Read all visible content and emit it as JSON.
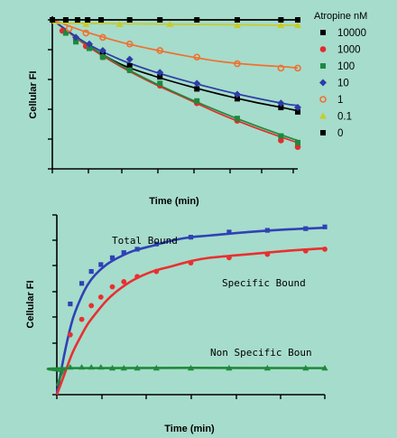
{
  "colors": {
    "background": "#a6dccb",
    "c10000": "#000000",
    "c1000": "#e52a2a",
    "c100": "#1c8a3e",
    "c10": "#2b3da8",
    "c1": "#f07030",
    "c01": "#c8cc2a",
    "c0": "#000000",
    "total": "#2f42b5",
    "specific": "#e83030",
    "nonspecific": "#1f8a3a"
  },
  "chart_data": [
    {
      "type": "scatter",
      "title": "",
      "xlabel": "Time (min)",
      "ylabel": "Cellular FI",
      "legend_title": "Atropine nM",
      "legend_position": "right",
      "x_ticks": 8,
      "y_ticks": 6,
      "series": [
        {
          "name": "10000",
          "color_key": "c10000",
          "marker": "square",
          "x": [
            0,
            0.7,
            1.1,
            1.5,
            2.3,
            3.2,
            4.3,
            5.5,
            6.8,
            7.3
          ],
          "y": [
            1.0,
            0.91,
            0.88,
            0.845,
            0.79,
            0.74,
            0.685,
            0.64,
            0.6,
            0.58
          ]
        },
        {
          "name": "1000",
          "color_key": "c1000",
          "marker": "circle",
          "x": [
            0.3,
            0.7,
            1.0,
            1.5,
            2.3,
            3.2,
            4.3,
            5.5,
            6.8,
            7.3
          ],
          "y": [
            0.95,
            0.91,
            0.88,
            0.83,
            0.77,
            0.7,
            0.62,
            0.54,
            0.45,
            0.42
          ]
        },
        {
          "name": "100",
          "color_key": "c100",
          "marker": "square",
          "x": [
            0.4,
            0.7,
            1.1,
            1.5,
            2.3,
            3.2,
            4.3,
            5.5,
            6.8,
            7.3
          ],
          "y": [
            0.94,
            0.9,
            0.87,
            0.83,
            0.77,
            0.71,
            0.63,
            0.55,
            0.47,
            0.44
          ]
        },
        {
          "name": "10",
          "color_key": "c10",
          "marker": "diamond",
          "x": [
            0.7,
            1.1,
            1.5,
            2.3,
            3.2,
            4.3,
            5.5,
            6.8,
            7.3
          ],
          "y": [
            0.92,
            0.89,
            0.86,
            0.82,
            0.76,
            0.71,
            0.66,
            0.62,
            0.6
          ]
        },
        {
          "name": "1",
          "color_key": "c1",
          "marker": "circle-open",
          "x": [
            0.5,
            1.0,
            1.5,
            2.3,
            3.2,
            4.3,
            5.5,
            6.8,
            7.3
          ],
          "y": [
            0.96,
            0.94,
            0.92,
            0.89,
            0.86,
            0.83,
            0.8,
            0.78,
            0.78
          ]
        },
        {
          "name": "0.1",
          "color_key": "c01",
          "marker": "triangle",
          "x": [
            1.0,
            2.0,
            3.5,
            5.5,
            6.8,
            7.3
          ],
          "y": [
            0.98,
            0.98,
            0.98,
            0.975,
            0.975,
            0.975
          ]
        },
        {
          "name": "0",
          "color_key": "c0",
          "marker": "square",
          "x": [
            0,
            0.4,
            0.75,
            1.05,
            1.45,
            2.3,
            3.2,
            4.3,
            5.5,
            6.8,
            7.3
          ],
          "y": [
            1.0,
            1.0,
            1.0,
            1.0,
            1.0,
            1.0,
            1.0,
            1.0,
            1.0,
            1.0,
            1.0
          ]
        }
      ],
      "fits": [
        {
          "color_key": "c10000",
          "x": [
            0,
            1,
            2,
            3,
            4,
            5,
            6,
            7,
            7.3
          ],
          "y": [
            1.0,
            0.89,
            0.8,
            0.745,
            0.7,
            0.66,
            0.625,
            0.595,
            0.585
          ]
        },
        {
          "color_key": "c1000",
          "x": [
            0,
            1,
            2,
            3,
            4,
            5,
            6,
            7,
            7.3
          ],
          "y": [
            1.0,
            0.885,
            0.79,
            0.71,
            0.64,
            0.57,
            0.51,
            0.455,
            0.44
          ]
        },
        {
          "color_key": "c100",
          "x": [
            0,
            1,
            2,
            3,
            4,
            5,
            6,
            7,
            7.3
          ],
          "y": [
            1.0,
            0.89,
            0.795,
            0.715,
            0.645,
            0.58,
            0.52,
            0.465,
            0.45
          ]
        },
        {
          "color_key": "c10",
          "x": [
            0,
            1,
            2,
            3,
            4,
            5,
            6,
            7,
            7.3
          ],
          "y": [
            1.0,
            0.895,
            0.82,
            0.765,
            0.72,
            0.68,
            0.645,
            0.615,
            0.61
          ]
        },
        {
          "color_key": "c1",
          "x": [
            0,
            1,
            2,
            3,
            4,
            5,
            6,
            7,
            7.3
          ],
          "y": [
            1.0,
            0.945,
            0.9,
            0.865,
            0.835,
            0.81,
            0.795,
            0.785,
            0.78
          ]
        },
        {
          "color_key": "c01",
          "x": [
            0,
            7.3
          ],
          "y": [
            0.985,
            0.975
          ]
        },
        {
          "color_key": "c0",
          "x": [
            0,
            7.3
          ],
          "y": [
            1.0,
            1.0
          ]
        }
      ]
    },
    {
      "type": "scatter",
      "title": "",
      "xlabel": "Time (min)",
      "ylabel": "Cellular FI",
      "x_ticks": 7,
      "y_ticks": 6,
      "series": [
        {
          "name": "Total Bound",
          "color_key": "total",
          "marker": "square",
          "x": [
            0.35,
            0.65,
            0.9,
            1.15,
            1.45,
            1.75,
            2.1,
            2.6,
            3.5,
            4.5,
            5.5,
            6.5,
            7.0
          ],
          "y": [
            0.53,
            0.65,
            0.72,
            0.76,
            0.8,
            0.83,
            0.85,
            0.88,
            0.92,
            0.95,
            0.96,
            0.97,
            0.98
          ]
        },
        {
          "name": "Specific Bound",
          "color_key": "specific",
          "marker": "circle",
          "x": [
            0.35,
            0.65,
            0.9,
            1.15,
            1.45,
            1.75,
            2.1,
            2.6,
            3.5,
            4.5,
            5.5,
            6.5,
            7.0
          ],
          "y": [
            0.35,
            0.44,
            0.52,
            0.57,
            0.63,
            0.66,
            0.69,
            0.72,
            0.77,
            0.8,
            0.82,
            0.84,
            0.85
          ]
        },
        {
          "name": "Non Specific Boun",
          "color_key": "nonspecific",
          "marker": "triangle",
          "x": [
            0.15,
            0.35,
            0.65,
            0.9,
            1.15,
            1.45,
            1.75,
            2.1,
            2.6,
            3.5,
            4.5,
            5.5,
            6.5,
            7.0
          ],
          "y": [
            0.15,
            0.16,
            0.16,
            0.16,
            0.16,
            0.155,
            0.155,
            0.155,
            0.155,
            0.155,
            0.155,
            0.155,
            0.155,
            0.155
          ]
        }
      ],
      "fits": [
        {
          "color_key": "total",
          "x": [
            0,
            0.2,
            0.4,
            0.6,
            0.8,
            1.0,
            1.3,
            1.6,
            2.0,
            2.5,
            3.0,
            3.5,
            4.0,
            5.0,
            6.0,
            7.0
          ],
          "y": [
            0.0,
            0.24,
            0.43,
            0.55,
            0.64,
            0.7,
            0.76,
            0.8,
            0.84,
            0.87,
            0.9,
            0.92,
            0.93,
            0.95,
            0.965,
            0.975
          ]
        },
        {
          "color_key": "specific",
          "x": [
            0,
            0.2,
            0.4,
            0.6,
            0.8,
            1.0,
            1.3,
            1.6,
            2.0,
            2.5,
            3.0,
            3.5,
            4.0,
            5.0,
            6.0,
            7.0
          ],
          "y": [
            0.0,
            0.12,
            0.24,
            0.33,
            0.41,
            0.47,
            0.55,
            0.61,
            0.67,
            0.72,
            0.75,
            0.78,
            0.8,
            0.82,
            0.84,
            0.855
          ]
        },
        {
          "color_key": "nonspecific",
          "x": [
            0,
            0.15,
            0.3,
            7.0
          ],
          "y": [
            0.05,
            0.13,
            0.155,
            0.155
          ]
        }
      ]
    }
  ]
}
